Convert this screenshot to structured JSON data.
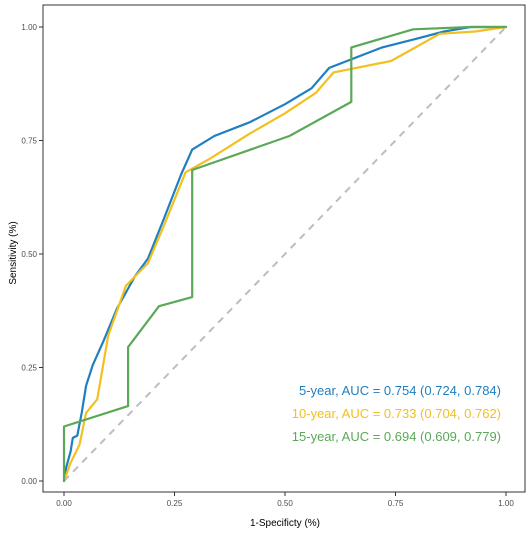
{
  "chart_data": {
    "type": "line",
    "title": "",
    "xlabel": "1-Specificty (%)",
    "ylabel": "Sensitivity (%)",
    "xlim": [
      0,
      1
    ],
    "ylim": [
      0,
      1
    ],
    "x_ticks": [
      "0.00",
      "0.25",
      "0.50",
      "0.75",
      "1.00"
    ],
    "y_ticks": [
      "0.00",
      "0.25",
      "0.50",
      "0.75",
      "1.00"
    ],
    "grid": false,
    "legend_position": "bottom-right",
    "reference_line": {
      "from": [
        0,
        0
      ],
      "to": [
        1,
        1
      ],
      "color": "#bdbdbd",
      "style": "dashed"
    },
    "series": [
      {
        "name": "5-year, AUC = 0.754 (0.724, 0.784)",
        "color": "#1f7fc0",
        "points": [
          [
            0,
            0
          ],
          [
            0.005,
            0.03
          ],
          [
            0.015,
            0.065
          ],
          [
            0.02,
            0.095
          ],
          [
            0.03,
            0.1
          ],
          [
            0.04,
            0.15
          ],
          [
            0.05,
            0.21
          ],
          [
            0.065,
            0.255
          ],
          [
            0.09,
            0.31
          ],
          [
            0.12,
            0.38
          ],
          [
            0.16,
            0.45
          ],
          [
            0.19,
            0.49
          ],
          [
            0.225,
            0.575
          ],
          [
            0.265,
            0.675
          ],
          [
            0.29,
            0.73
          ],
          [
            0.34,
            0.76
          ],
          [
            0.42,
            0.79
          ],
          [
            0.5,
            0.83
          ],
          [
            0.56,
            0.865
          ],
          [
            0.6,
            0.91
          ],
          [
            0.72,
            0.955
          ],
          [
            0.8,
            0.975
          ],
          [
            0.86,
            0.99
          ],
          [
            0.92,
            1.0
          ],
          [
            1.0,
            1.0
          ]
        ]
      },
      {
        "name": "10-year, AUC = 0.733 (0.704, 0.762)",
        "color": "#f2c01f",
        "points": [
          [
            0,
            0
          ],
          [
            0.015,
            0.04
          ],
          [
            0.035,
            0.08
          ],
          [
            0.05,
            0.15
          ],
          [
            0.075,
            0.18
          ],
          [
            0.1,
            0.32
          ],
          [
            0.14,
            0.43
          ],
          [
            0.19,
            0.48
          ],
          [
            0.225,
            0.56
          ],
          [
            0.275,
            0.68
          ],
          [
            0.33,
            0.71
          ],
          [
            0.42,
            0.765
          ],
          [
            0.5,
            0.81
          ],
          [
            0.57,
            0.855
          ],
          [
            0.61,
            0.9
          ],
          [
            0.74,
            0.925
          ],
          [
            0.85,
            0.985
          ],
          [
            0.93,
            0.99
          ],
          [
            1.0,
            1.0
          ]
        ]
      },
      {
        "name": "15-year, AUC = 0.694 (0.609, 0.779)",
        "color": "#5ba858",
        "points": [
          [
            0,
            0
          ],
          [
            0,
            0.12
          ],
          [
            0.145,
            0.165
          ],
          [
            0.145,
            0.295
          ],
          [
            0.215,
            0.385
          ],
          [
            0.29,
            0.405
          ],
          [
            0.29,
            0.685
          ],
          [
            0.51,
            0.76
          ],
          [
            0.65,
            0.835
          ],
          [
            0.65,
            0.955
          ],
          [
            0.79,
            0.995
          ],
          [
            0.92,
            1.0
          ],
          [
            1.0,
            1.0
          ]
        ]
      }
    ]
  }
}
